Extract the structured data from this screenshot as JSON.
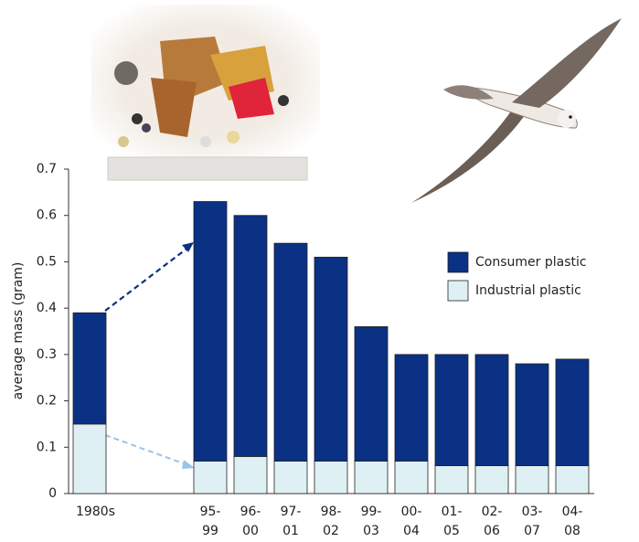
{
  "chart_data": {
    "type": "stacked_bar",
    "y_label": "average mass (gram)",
    "categories": [
      "1980s",
      null,
      null,
      "95-99",
      "96-00",
      "97-01",
      "98-02",
      "99-03",
      "00-04",
      "01-05",
      "02-06",
      "03-07",
      "04-08"
    ],
    "series": [
      {
        "name": "Industrial plastic",
        "color": "#dff0f4",
        "values": [
          0.15,
          null,
          null,
          0.07,
          0.08,
          0.07,
          0.07,
          0.07,
          0.07,
          0.06,
          0.06,
          0.06,
          0.06
        ]
      },
      {
        "name": "Consumer plastic",
        "color": "#0a3184",
        "values": [
          0.24,
          null,
          null,
          0.56,
          0.52,
          0.47,
          0.44,
          0.29,
          0.23,
          0.24,
          0.24,
          0.22,
          0.23
        ]
      }
    ],
    "ylim": [
      0,
      0.7
    ],
    "yticks": [
      0,
      0.1,
      0.2,
      0.3,
      0.4,
      0.5,
      0.6,
      0.7
    ],
    "grid": false,
    "legend": "right"
  }
}
